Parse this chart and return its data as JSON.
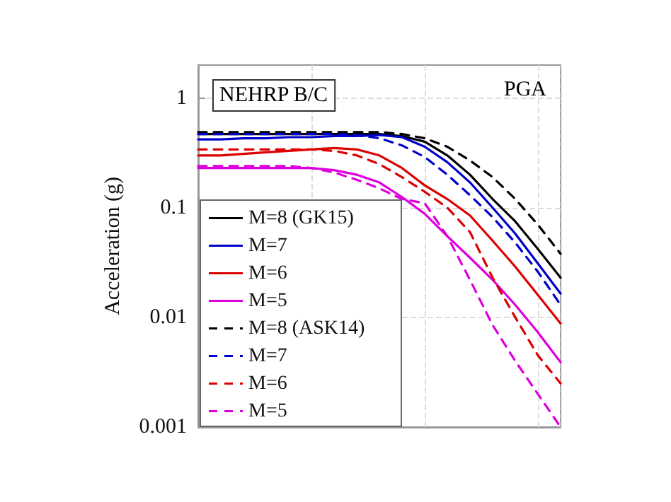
{
  "chart_data": {
    "type": "line",
    "ylabel": "Acceleration (g)",
    "annotations": [
      "NEHRP B/C",
      "PGA"
    ],
    "categories": [
      null,
      null,
      null,
      null,
      null,
      null,
      null,
      null,
      null,
      null,
      null,
      null,
      null,
      null,
      null,
      null,
      null
    ],
    "log": "y",
    "ylim": [
      0.001,
      2
    ],
    "yticks": [
      0.001,
      0.01,
      0.1,
      1
    ],
    "tick_labels": "y",
    "grid": true,
    "legend": "bottom left",
    "marker": "none",
    "series": [
      {
        "name": "M=8 (GK15)",
        "color": "#000000",
        "line_style": "solid",
        "values": [
          0.47,
          0.47,
          0.47,
          0.47,
          0.47,
          0.47,
          0.47,
          0.47,
          0.47,
          0.45,
          0.4,
          0.3,
          0.2,
          0.12,
          0.075,
          0.042,
          0.023
        ]
      },
      {
        "name": "M=7",
        "color": "#0000cc",
        "line_style": "solid",
        "values": [
          0.42,
          0.42,
          0.43,
          0.43,
          0.44,
          0.44,
          0.45,
          0.45,
          0.46,
          0.44,
          0.36,
          0.26,
          0.17,
          0.1,
          0.058,
          0.031,
          0.0165
        ]
      },
      {
        "name": "M=6",
        "color": "#dd0000",
        "line_style": "solid",
        "values": [
          0.3,
          0.3,
          0.31,
          0.32,
          0.33,
          0.34,
          0.35,
          0.34,
          0.3,
          0.23,
          0.16,
          0.12,
          0.085,
          0.05,
          0.029,
          0.016,
          0.0088
        ]
      },
      {
        "name": "M=5",
        "color": "#dd00dd",
        "line_style": "solid",
        "values": [
          0.23,
          0.23,
          0.23,
          0.23,
          0.23,
          0.23,
          0.22,
          0.2,
          0.17,
          0.125,
          0.088,
          0.055,
          0.035,
          0.022,
          0.013,
          0.0073,
          0.0039
        ]
      },
      {
        "name": "M=8 (ASK14)",
        "color": "#000000",
        "line_style": "dashed",
        "values": [
          0.49,
          0.49,
          0.49,
          0.49,
          0.49,
          0.49,
          0.49,
          0.49,
          0.49,
          0.47,
          0.43,
          0.36,
          0.27,
          0.19,
          0.12,
          0.07,
          0.038
        ]
      },
      {
        "name": "M=7",
        "color": "#0000cc",
        "line_style": "dashed",
        "values": [
          0.47,
          0.47,
          0.47,
          0.47,
          0.47,
          0.47,
          0.47,
          0.46,
          0.43,
          0.37,
          0.29,
          0.2,
          0.13,
          0.082,
          0.048,
          0.026,
          0.013
        ]
      },
      {
        "name": "M=6",
        "color": "#dd0000",
        "line_style": "dashed",
        "values": [
          0.34,
          0.34,
          0.34,
          0.34,
          0.34,
          0.34,
          0.33,
          0.3,
          0.25,
          0.19,
          0.14,
          0.1,
          0.06,
          0.023,
          0.01,
          0.0045,
          0.0025
        ]
      },
      {
        "name": "M=5",
        "color": "#dd00dd",
        "line_style": "dashed",
        "values": [
          0.24,
          0.24,
          0.24,
          0.24,
          0.24,
          0.23,
          0.21,
          0.18,
          0.15,
          0.12,
          0.11,
          0.055,
          0.022,
          0.0085,
          0.004,
          0.002,
          0.001
        ]
      }
    ]
  }
}
